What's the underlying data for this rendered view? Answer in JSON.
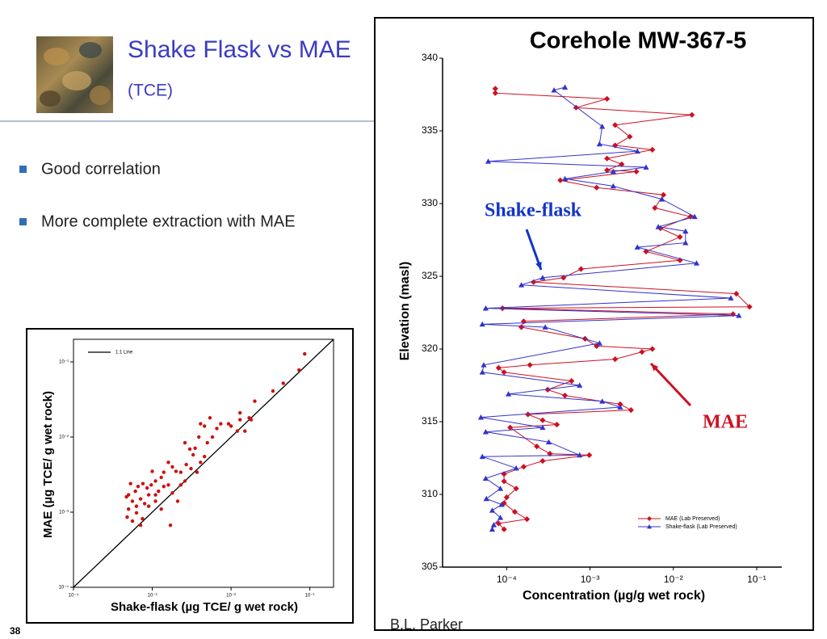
{
  "header": {
    "title": "Shake Flask vs MAE",
    "subtitle": "(TCE)"
  },
  "bullets": [
    "Good correlation",
    "More complete extraction with MAE"
  ],
  "page_number": "38",
  "credit": "B.L. Parker",
  "chart_data": [
    {
      "type": "scatter",
      "x_label": "Shake-flask (µg TCE/ g wet rock)",
      "y_label": "MAE (µg TCE/ g wet rock)",
      "xlog": true,
      "ylog": true,
      "xlim": [
        0.0001,
        0.2
      ],
      "ylim": [
        0.0001,
        0.2
      ],
      "xticks": [
        {
          "value": 0.0001,
          "label": "10⁻⁴"
        },
        {
          "value": 0.001,
          "label": "10⁻³"
        },
        {
          "value": 0.01,
          "label": "10⁻²"
        },
        {
          "value": 0.1,
          "label": "10⁻¹"
        }
      ],
      "yticks": [
        {
          "value": 0.0001,
          "label": "10⁻⁴"
        },
        {
          "value": 0.001,
          "label": "10⁻³"
        },
        {
          "value": 0.01,
          "label": "10⁻²"
        },
        {
          "value": 0.1,
          "label": "10⁻¹"
        }
      ],
      "color": "#cc1111",
      "x": [
        0.086,
        0.073,
        0.046,
        0.034,
        0.02,
        0.017,
        0.013,
        0.013,
        0.01,
        0.018,
        0.015,
        0.012,
        0.0093,
        0.0074,
        0.0066,
        0.0054,
        0.0046,
        0.0041,
        0.0058,
        0.005,
        0.0039,
        0.0035,
        0.0033,
        0.003,
        0.0026,
        0.0046,
        0.0041,
        0.0037,
        0.0031,
        0.0027,
        0.0023,
        0.002,
        0.0018,
        0.0016,
        0.0014,
        0.0013,
        0.0011,
        0.001,
        0.00097,
        0.00086,
        0.00076,
        0.00066,
        0.00061,
        0.00053,
        0.0005,
        0.00047,
        0.00056,
        0.00063,
        0.00071,
        0.0008,
        0.0009,
        0.0011,
        0.0012,
        0.0014,
        0.0016,
        0.0018,
        0.0021,
        0.0017,
        0.0009,
        0.00075,
        0.0005,
        0.00048,
        0.00056,
        0.00071,
        0.00063,
        0.0011,
        0.0013,
        0.0026,
        0.0023
      ],
      "values": [
        0.128,
        0.078,
        0.052,
        0.041,
        0.03,
        0.018,
        0.021,
        0.017,
        0.014,
        0.017,
        0.012,
        0.012,
        0.015,
        0.015,
        0.013,
        0.018,
        0.014,
        0.015,
        0.01,
        0.0084,
        0.01,
        0.0071,
        0.0058,
        0.0069,
        0.0084,
        0.0055,
        0.0046,
        0.0034,
        0.0038,
        0.0043,
        0.0034,
        0.0035,
        0.004,
        0.0046,
        0.0034,
        0.0029,
        0.0026,
        0.0035,
        0.0023,
        0.0021,
        0.0024,
        0.0022,
        0.0019,
        0.0024,
        0.0017,
        0.0016,
        0.0014,
        0.0012,
        0.0015,
        0.0013,
        0.0017,
        0.0017,
        0.0019,
        0.0022,
        0.0023,
        0.0018,
        0.0014,
        0.00067,
        0.0012,
        0.00082,
        0.0011,
        0.00086,
        0.00076,
        0.00067,
        0.00098,
        0.0014,
        0.0011,
        0.0026,
        0.0023
      ],
      "reference_line": {
        "name": "1:1 Line",
        "color": "#000000",
        "x": [
          0.0001,
          0.2
        ],
        "values": [
          0.0001,
          0.2
        ]
      },
      "legend": "upper left"
    },
    {
      "type": "line",
      "title": "Corehole MW-367-5",
      "x_label": "Concentration (µg/g wet rock)",
      "y_label": "Elevation (masl)",
      "xlog": true,
      "ylog": false,
      "xlim": [
        1.7e-05,
        0.2
      ],
      "ylim": [
        305,
        340
      ],
      "xticks": [
        {
          "value": 0.0001,
          "label": "10⁻⁴"
        },
        {
          "value": 0.001,
          "label": "10⁻³"
        },
        {
          "value": 0.01,
          "label": "10⁻²"
        },
        {
          "value": 0.1,
          "label": "10⁻¹"
        }
      ],
      "yticks": [
        305,
        310,
        315,
        320,
        325,
        330,
        335,
        340
      ],
      "legend": "lower right",
      "series": [
        {
          "name": "MAE (Lab Preserved)",
          "color": "#cc1122",
          "marker": "diamond",
          "x": [
            7.3e-05,
            7.3e-05,
            0.0016,
            0.00068,
            0.0167,
            0.002,
            0.003,
            0.002,
            0.0056,
            0.0016,
            0.0024,
            0.0016,
            0.0036,
            0.00044,
            0.0012,
            0.0076,
            0.006,
            0.016,
            0.007,
            0.012,
            0.0047,
            0.012,
            0.00078,
            0.00048,
            0.00021,
            0.057,
            0.082,
            8.9e-05,
            0.052,
            0.00016,
            0.00015,
            0.00087,
            0.0012,
            0.0056,
            0.0042,
            0.002,
            0.00019,
            8e-05,
            9.3e-05,
            0.0006,
            0.00031,
            0.0005,
            0.0023,
            0.0031,
            0.00018,
            0.00027,
            0.0004,
            0.00011,
            0.00023,
            0.00033,
            0.00098,
            0.00027,
            0.00016,
            9.3e-05,
            9.3e-05,
            0.00013,
            0.0001,
            9.3e-05,
            0.000125,
            0.000175,
            8e-05,
            9.3e-05
          ],
          "values": [
            337.9,
            337.6,
            337.2,
            336.6,
            336.1,
            335.4,
            334.6,
            334.0,
            333.7,
            333.1,
            332.7,
            332.3,
            332.2,
            331.6,
            331.1,
            330.6,
            329.7,
            329.1,
            328.3,
            327.7,
            326.7,
            326.1,
            325.5,
            324.9,
            324.6,
            323.8,
            322.9,
            322.8,
            322.4,
            321.9,
            321.5,
            320.7,
            320.2,
            320.0,
            319.8,
            319.3,
            318.9,
            318.7,
            318.4,
            317.8,
            317.2,
            316.8,
            316.2,
            315.8,
            315.5,
            315.1,
            314.8,
            314.6,
            313.3,
            312.8,
            312.7,
            312.3,
            311.9,
            311.4,
            310.9,
            310.4,
            309.8,
            309.4,
            308.8,
            308.3,
            308.0,
            307.6
          ]
        },
        {
          "name": "Shake-flask (Lab Preserved)",
          "color": "#3333cc",
          "marker": "triangle",
          "x": [
            0.0005,
            0.00037,
            0.0014,
            0.0013,
            0.0037,
            6e-05,
            0.0047,
            0.0019,
            0.0005,
            0.0019,
            0.0073,
            0.018,
            0.0066,
            0.014,
            0.014,
            0.0037,
            0.019,
            0.00027,
            0.00015,
            0.049,
            5.6e-05,
            0.061,
            5.1e-05,
            0.00029,
            0.0013,
            5.3e-05,
            5.1e-05,
            0.00075,
            0.000105,
            0.0014,
            0.0023,
            4.9e-05,
            0.00027,
            5.6e-05,
            0.00032,
            0.00075,
            5.1e-05,
            0.00013,
            5.6e-05,
            8.4e-05,
            5.7e-05,
            8.7e-05,
            6.7e-05,
            8.4e-05,
            7e-05,
            6.7e-05
          ],
          "values": [
            338.0,
            337.8,
            335.3,
            334.1,
            333.6,
            332.9,
            332.5,
            332.2,
            331.7,
            331.2,
            330.3,
            329.1,
            328.4,
            328.1,
            327.3,
            327.0,
            325.9,
            324.9,
            324.4,
            323.5,
            322.8,
            322.3,
            321.7,
            321.5,
            320.4,
            318.9,
            318.4,
            317.5,
            316.9,
            316.4,
            316.0,
            315.3,
            314.6,
            314.3,
            313.6,
            312.7,
            312.6,
            311.8,
            311.1,
            310.4,
            309.7,
            309.3,
            308.9,
            308.4,
            307.9,
            307.6
          ]
        }
      ],
      "annotations": [
        {
          "text": "Shake-flask",
          "color": "#1133cc"
        },
        {
          "text": "MAE",
          "color": "#cc1122"
        }
      ]
    }
  ]
}
